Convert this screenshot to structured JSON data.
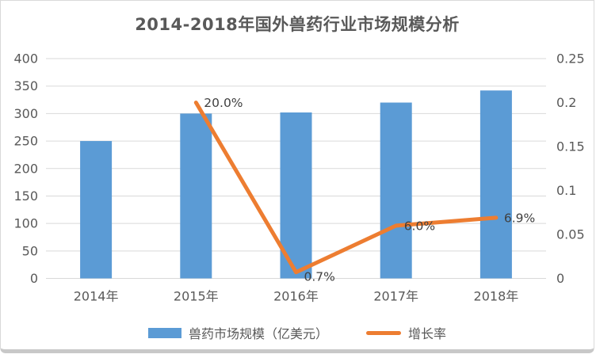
{
  "chart": {
    "title": "2014-2018年国外兽药行业市场规模分析"
  },
  "chart_data": {
    "type": "combo-bar-line",
    "title": "2014-2018年国外兽药行业市场规模分析",
    "categories": [
      "2014年",
      "2015年",
      "2016年",
      "2017年",
      "2018年"
    ],
    "series": [
      {
        "name": "兽药市场规模（亿美元）",
        "type": "bar",
        "axis": "left",
        "color": "#5B9BD5",
        "values": [
          250,
          300,
          302,
          320,
          342
        ]
      },
      {
        "name": "增长率",
        "type": "line",
        "axis": "right",
        "color": "#ED7D31",
        "values": [
          null,
          0.2,
          0.007,
          0.06,
          0.069
        ],
        "point_labels": [
          null,
          "20.0%",
          "0.7%",
          "6.0%",
          "6.9%"
        ]
      }
    ],
    "left_axis": {
      "min": 0,
      "max": 400,
      "step": 50,
      "ticks": [
        "400",
        "350",
        "300",
        "250",
        "200",
        "150",
        "100",
        "50",
        "0"
      ]
    },
    "right_axis": {
      "min": 0,
      "max": 0.25,
      "step": 0.05,
      "ticks": [
        "0.25",
        "0.2",
        "0.15",
        "0.1",
        "0.05",
        "0"
      ]
    },
    "grid": true,
    "legend_position": "bottom",
    "grid_color": "#d9d9d9",
    "axis_text_color": "#595959",
    "point_label_color": "#404040"
  }
}
